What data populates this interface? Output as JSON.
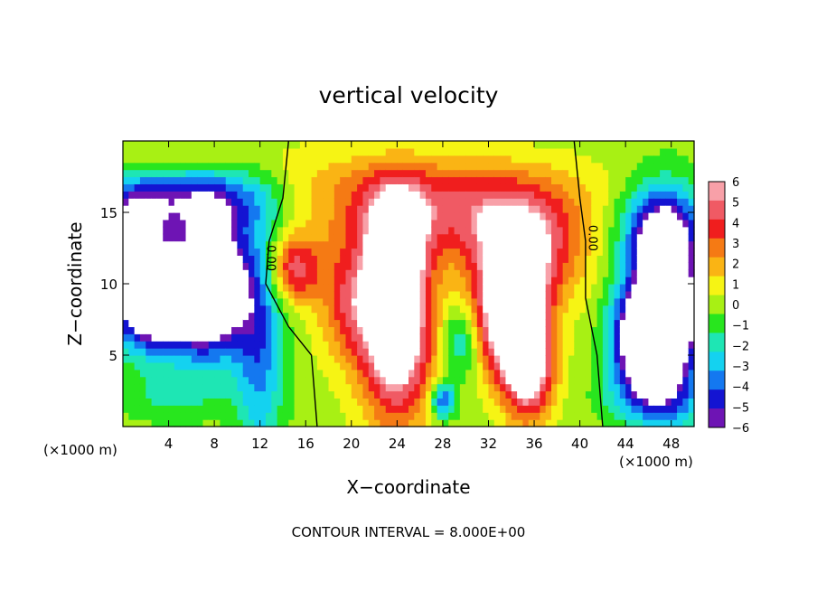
{
  "chart_data": {
    "type": "heatmap",
    "title": "vertical velocity",
    "xlabel": "X−coordinate",
    "ylabel": "Z−coordinate",
    "x_unit_left": "(×1000 m)",
    "x_unit_right": "(×1000 m)",
    "xlim": [
      0,
      50
    ],
    "ylim": [
      0,
      20
    ],
    "x_ticks": [
      4,
      8,
      12,
      16,
      20,
      24,
      28,
      32,
      36,
      40,
      44,
      48
    ],
    "x_tick_labels": [
      "4",
      "8",
      "12",
      "16",
      "20",
      "24",
      "28",
      "32",
      "36",
      "40",
      "44",
      "48"
    ],
    "y_ticks": [
      5,
      10,
      15
    ],
    "y_tick_labels": [
      "5",
      "10",
      "15"
    ],
    "colorbar": {
      "min": -6,
      "max": 6,
      "labels": [
        "6",
        "5",
        "4",
        "3",
        "2",
        "1",
        "0",
        "−1",
        "−2",
        "−3",
        "−4",
        "−5",
        "−6"
      ],
      "colors": [
        "#f8a0a8",
        "#f05a64",
        "#f01e1e",
        "#f57a14",
        "#fab414",
        "#f6f414",
        "#a8f014",
        "#28e61e",
        "#1ee6b4",
        "#14d2f0",
        "#1478f0",
        "#1414d2",
        "#6e14b4"
      ]
    },
    "zero_contour_label": "0.00",
    "footer": "CONTOUR INTERVAL = 8.000E+00",
    "features": [
      {
        "x": 3,
        "z": 9,
        "sx": 2.8,
        "sz": 2.5,
        "value": -11
      },
      {
        "x": 8,
        "z": 10,
        "sx": 2.2,
        "sz": 3.5,
        "value": -9
      },
      {
        "x": 6,
        "z": 16,
        "sx": 5,
        "sz": 1.6,
        "value": -5
      },
      {
        "x": 1,
        "z": 14,
        "sx": 1.8,
        "sz": 2,
        "value": -5
      },
      {
        "x": 12,
        "z": 6,
        "sx": 1.5,
        "sz": 6,
        "value": -4
      },
      {
        "x": 15,
        "z": 11,
        "sx": 1.6,
        "sz": 1.6,
        "value": 5
      },
      {
        "x": 24,
        "z": 7,
        "sx": 2.2,
        "sz": 4.5,
        "value": 9
      },
      {
        "x": 24,
        "z": 13,
        "sx": 1.6,
        "sz": 2.5,
        "value": 6
      },
      {
        "x": 20,
        "z": 9,
        "sx": 2,
        "sz": 3,
        "value": 4
      },
      {
        "x": 24,
        "z": 15,
        "sx": 6,
        "sz": 2,
        "value": 3
      },
      {
        "x": 29.5,
        "z": 6,
        "sx": 1.1,
        "sz": 1.8,
        "value": -3
      },
      {
        "x": 28,
        "z": 1.8,
        "sx": 0.8,
        "sz": 0.9,
        "value": -5
      },
      {
        "x": 34,
        "z": 8,
        "sx": 2,
        "sz": 3,
        "value": 10
      },
      {
        "x": 35.5,
        "z": 4,
        "sx": 1.5,
        "sz": 2.5,
        "value": 7
      },
      {
        "x": 35,
        "z": 12,
        "sx": 3.5,
        "sz": 2.5,
        "value": 5
      },
      {
        "x": 34,
        "z": 15,
        "sx": 5,
        "sz": 2,
        "value": 3
      },
      {
        "x": 47.5,
        "z": 8,
        "sx": 2.2,
        "sz": 4.5,
        "value": -11
      },
      {
        "x": 47,
        "z": 14,
        "sx": 2.5,
        "sz": 2,
        "value": -4
      },
      {
        "x": 44.5,
        "z": 6,
        "sx": 1.5,
        "sz": 2.5,
        "value": -5
      },
      {
        "x": 46,
        "z": 2,
        "sx": 3,
        "sz": 1.2,
        "value": -2
      },
      {
        "x": 25,
        "z": 17.5,
        "sx": 10,
        "sz": 1.5,
        "value": 1.5
      },
      {
        "x": 6,
        "z": 19,
        "sx": 6,
        "sz": 1.2,
        "value": 0.8
      },
      {
        "x": 4,
        "z": 2,
        "sx": 3,
        "sz": 1.2,
        "value": -1.5
      }
    ]
  }
}
